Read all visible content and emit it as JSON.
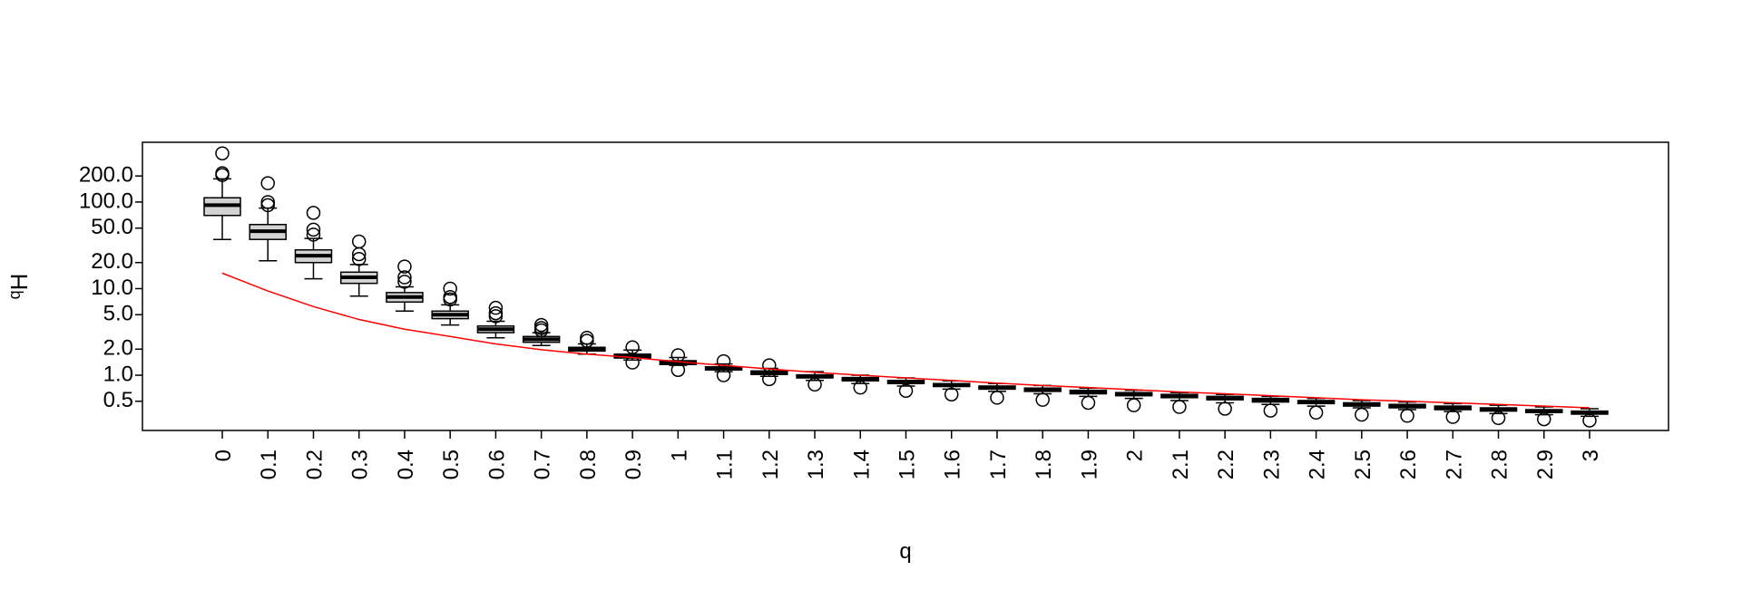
{
  "chart_data": {
    "type": "boxplot",
    "log_y": true,
    "xlabel": "q",
    "ylabel_sup": "q",
    "ylabel": "H",
    "box_color": "#d3d3d3",
    "categories": [
      "0",
      "0.1",
      "0.2",
      "0.3",
      "0.4",
      "0.5",
      "0.6",
      "0.7",
      "0.8",
      "0.9",
      "1",
      "1.1",
      "1.2",
      "1.3",
      "1.4",
      "1.5",
      "1.6",
      "1.7",
      "1.8",
      "1.9",
      "2",
      "2.1",
      "2.2",
      "2.3",
      "2.4",
      "2.5",
      "2.6",
      "2.7",
      "2.8",
      "2.9",
      "3"
    ],
    "ylim": [
      0.23,
      490
    ],
    "yticks": [
      0.5,
      {
        "value": 1,
        "label": "1.0"
      },
      {
        "value": 2,
        "label": "2.0"
      },
      {
        "value": 5,
        "label": "5.0"
      },
      {
        "value": 10,
        "label": "10.0"
      },
      {
        "value": 20,
        "label": "20.0"
      },
      {
        "value": 50,
        "label": "50.0"
      },
      {
        "value": 100,
        "label": "100.0"
      },
      {
        "value": 200,
        "label": "200.0"
      }
    ],
    "boxes": [
      {
        "whisker_low": 37,
        "q1": 70,
        "median": 92,
        "q3": 112,
        "whisker_high": 185,
        "outliers": [
          205,
          215,
          365
        ]
      },
      {
        "whisker_low": 21,
        "q1": 37,
        "median": 46,
        "q3": 55,
        "whisker_high": 85,
        "outliers": [
          92,
          100,
          165
        ]
      },
      {
        "whisker_low": 13,
        "q1": 20,
        "median": 24,
        "q3": 28,
        "whisker_high": 38,
        "outliers": [
          42,
          48,
          75
        ]
      },
      {
        "whisker_low": 8.2,
        "q1": 11.5,
        "median": 13.5,
        "q3": 15.5,
        "whisker_high": 19,
        "outliers": [
          22,
          25,
          35
        ]
      },
      {
        "whisker_low": 5.5,
        "q1": 7,
        "median": 8,
        "q3": 9,
        "whisker_high": 10.5,
        "outliers": [
          12,
          13.5,
          18
        ]
      },
      {
        "whisker_low": 3.8,
        "q1": 4.5,
        "median": 5,
        "q3": 5.5,
        "whisker_high": 6.5,
        "outliers": [
          7.5,
          8,
          10
        ]
      },
      {
        "whisker_low": 2.7,
        "q1": 3.1,
        "median": 3.4,
        "q3": 3.7,
        "whisker_high": 4.2,
        "outliers": [
          4.8,
          5.2,
          6
        ]
      },
      {
        "whisker_low": 2.2,
        "q1": 2.4,
        "median": 2.6,
        "q3": 2.8,
        "whisker_high": 3.1,
        "outliers": [
          3.3,
          3.5,
          3.8
        ]
      },
      {
        "whisker_low": 1.75,
        "q1": 1.9,
        "median": 2,
        "q3": 2.1,
        "whisker_high": 2.3,
        "outliers": [
          2.5,
          2.7
        ]
      },
      {
        "whisker_low": 1.5,
        "q1": 1.58,
        "median": 1.65,
        "q3": 1.75,
        "whisker_high": 1.95,
        "outliers": [
          1.4,
          2.1
        ]
      },
      {
        "whisker_low": 1.3,
        "q1": 1.33,
        "median": 1.4,
        "q3": 1.47,
        "whisker_high": 1.6,
        "outliers": [
          1.15,
          1.7
        ]
      },
      {
        "whisker_low": 1.1,
        "q1": 1.15,
        "median": 1.2,
        "q3": 1.25,
        "whisker_high": 1.35,
        "outliers": [
          1.0,
          1.45
        ]
      },
      {
        "whisker_low": 0.97,
        "q1": 1.02,
        "median": 1.07,
        "q3": 1.12,
        "whisker_high": 1.2,
        "outliers": [
          0.9,
          1.3
        ]
      },
      {
        "whisker_low": 0.87,
        "q1": 0.93,
        "median": 0.97,
        "q3": 1.01,
        "whisker_high": 1.1,
        "outliers": [
          0.78
        ]
      },
      {
        "whisker_low": 0.8,
        "q1": 0.86,
        "median": 0.9,
        "q3": 0.94,
        "whisker_high": 1.0,
        "outliers": [
          0.72
        ]
      },
      {
        "whisker_low": 0.75,
        "q1": 0.8,
        "median": 0.83,
        "q3": 0.87,
        "whisker_high": 0.93,
        "outliers": [
          0.66
        ]
      },
      {
        "whisker_low": 0.69,
        "q1": 0.74,
        "median": 0.77,
        "q3": 0.8,
        "whisker_high": 0.86,
        "outliers": [
          0.6
        ]
      },
      {
        "whisker_low": 0.65,
        "q1": 0.69,
        "median": 0.72,
        "q3": 0.75,
        "whisker_high": 0.8,
        "outliers": [
          0.55
        ]
      },
      {
        "whisker_low": 0.61,
        "q1": 0.65,
        "median": 0.68,
        "q3": 0.71,
        "whisker_high": 0.76,
        "outliers": [
          0.52
        ]
      },
      {
        "whisker_low": 0.57,
        "q1": 0.61,
        "median": 0.64,
        "q3": 0.67,
        "whisker_high": 0.71,
        "outliers": [
          0.48
        ]
      },
      {
        "whisker_low": 0.54,
        "q1": 0.58,
        "median": 0.6,
        "q3": 0.63,
        "whisker_high": 0.67,
        "outliers": [
          0.45
        ]
      },
      {
        "whisker_low": 0.51,
        "q1": 0.55,
        "median": 0.57,
        "q3": 0.6,
        "whisker_high": 0.63,
        "outliers": [
          0.43
        ]
      },
      {
        "whisker_low": 0.48,
        "q1": 0.52,
        "median": 0.54,
        "q3": 0.57,
        "whisker_high": 0.6,
        "outliers": [
          0.41
        ]
      },
      {
        "whisker_low": 0.46,
        "q1": 0.49,
        "median": 0.51,
        "q3": 0.54,
        "whisker_high": 0.57,
        "outliers": [
          0.39
        ]
      },
      {
        "whisker_low": 0.44,
        "q1": 0.47,
        "median": 0.49,
        "q3": 0.51,
        "whisker_high": 0.54,
        "outliers": [
          0.37
        ]
      },
      {
        "whisker_low": 0.42,
        "q1": 0.44,
        "median": 0.46,
        "q3": 0.48,
        "whisker_high": 0.51,
        "outliers": [
          0.35
        ]
      },
      {
        "whisker_low": 0.4,
        "q1": 0.42,
        "median": 0.44,
        "q3": 0.46,
        "whisker_high": 0.49,
        "outliers": [
          0.34
        ]
      },
      {
        "whisker_low": 0.38,
        "q1": 0.4,
        "median": 0.42,
        "q3": 0.44,
        "whisker_high": 0.47,
        "outliers": [
          0.33
        ]
      },
      {
        "whisker_low": 0.36,
        "q1": 0.385,
        "median": 0.4,
        "q3": 0.42,
        "whisker_high": 0.45,
        "outliers": [
          0.32
        ]
      },
      {
        "whisker_low": 0.35,
        "q1": 0.37,
        "median": 0.385,
        "q3": 0.4,
        "whisker_high": 0.43,
        "outliers": [
          0.31
        ]
      },
      {
        "whisker_low": 0.335,
        "q1": 0.355,
        "median": 0.37,
        "q3": 0.385,
        "whisker_high": 0.41,
        "outliers": [
          0.3
        ]
      }
    ],
    "line": {
      "color": "#ff0000",
      "values": [
        15.1,
        9.4,
        6.2,
        4.4,
        3.4,
        2.8,
        2.3,
        1.97,
        1.75,
        1.6,
        1.43,
        1.3,
        1.18,
        1.08,
        1.0,
        0.93,
        0.87,
        0.81,
        0.76,
        0.72,
        0.68,
        0.64,
        0.61,
        0.58,
        0.55,
        0.52,
        0.5,
        0.48,
        0.46,
        0.44,
        0.42
      ]
    }
  }
}
